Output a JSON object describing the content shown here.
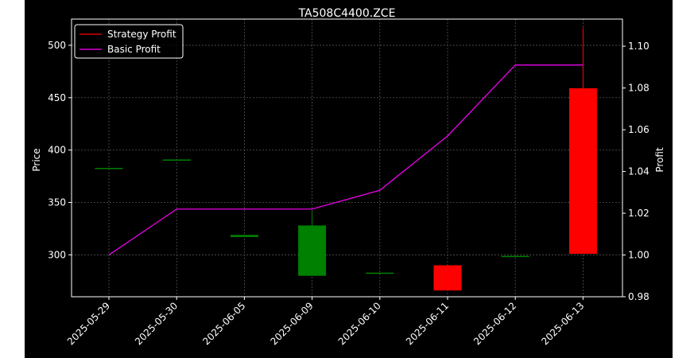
{
  "chart_data": {
    "type": "candlestick",
    "title": "TA508C4400.ZCE",
    "ylabel": "Price",
    "y2label": "Profit",
    "categories": [
      "2025-05-29",
      "2025-05-30",
      "2025-06-05",
      "2025-06-09",
      "2025-06-10",
      "2025-06-11",
      "2025-06-12",
      "2025-06-13"
    ],
    "ylim": [
      260,
      525
    ],
    "y_ticks": [
      300,
      350,
      400,
      450,
      500
    ],
    "y2lim": [
      0.98,
      1.113
    ],
    "y2_ticks": [
      0.98,
      1.0,
      1.02,
      1.04,
      1.06,
      1.08,
      1.1
    ],
    "y2_tick_labels": [
      "0.98",
      "1.00",
      "1.02",
      "1.04",
      "1.06",
      "1.08",
      "1.10"
    ],
    "candles": [
      {
        "date": "2025-05-29",
        "open": 383,
        "high": 383,
        "low": 383,
        "close": 383
      },
      {
        "date": "2025-05-30",
        "open": 391,
        "high": 391,
        "low": 391,
        "close": 391
      },
      {
        "date": "2025-06-05",
        "open": 317,
        "high": 319,
        "low": 317,
        "close": 319
      },
      {
        "date": "2025-06-09",
        "open": 280,
        "high": 342,
        "low": 280,
        "close": 328
      },
      {
        "date": "2025-06-10",
        "open": 283,
        "high": 283,
        "low": 283,
        "close": 283
      },
      {
        "date": "2025-06-11",
        "open": 290,
        "high": 290,
        "low": 266,
        "close": 266
      },
      {
        "date": "2025-06-12",
        "open": 299,
        "high": 299,
        "low": 299,
        "close": 299
      },
      {
        "date": "2025-06-13",
        "open": 459,
        "high": 517,
        "low": 301,
        "close": 301
      }
    ],
    "series": [
      {
        "name": "Strategy Profit",
        "color": "#ff0000",
        "values": [
          null,
          null,
          null,
          null,
          null,
          null,
          null,
          null
        ]
      },
      {
        "name": "Basic Profit",
        "color": "#ff00ff",
        "values": [
          1.0,
          1.022,
          1.022,
          1.022,
          1.031,
          1.057,
          1.091,
          1.091
        ]
      }
    ],
    "colors": {
      "up": "#008000",
      "down": "#ff0000"
    },
    "legend": "top-left",
    "grid": true
  }
}
